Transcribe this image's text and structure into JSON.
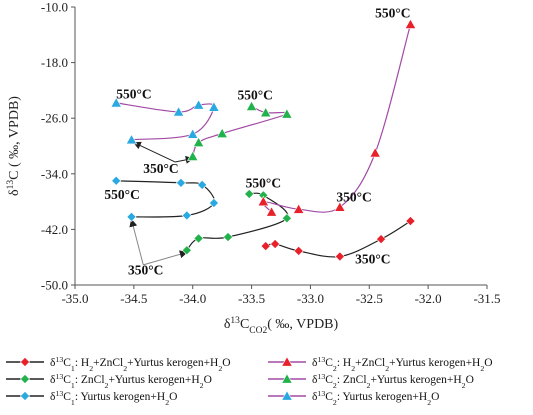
{
  "chart_data": {
    "type": "scatter",
    "title": "",
    "xlabel_parts": [
      "δ",
      "13",
      "C",
      "CO2",
      "( ‰, VPDB)"
    ],
    "ylabel_parts": [
      "δ",
      "13",
      "C ( ‰, VPDB)"
    ],
    "xlim": [
      -35.0,
      -31.5
    ],
    "ylim": [
      -50.0,
      -10.0
    ],
    "xticks": [
      -35.0,
      -34.5,
      -34.0,
      -33.5,
      -33.0,
      -32.5,
      -32.0,
      -31.5
    ],
    "xtick_labels": [
      "-35.0",
      "-34.5",
      "-34.0",
      "-33.5",
      "-33.0",
      "-32.5",
      "-32.0",
      "-31.5"
    ],
    "yticks": [
      -10.0,
      -18.0,
      -26.0,
      -34.0,
      -42.0,
      -50.0
    ],
    "ytick_labels": [
      "-10.0",
      "-18.0",
      "-26.0",
      "-34.0",
      "-42.0",
      "-50.0"
    ],
    "legend_position": "bottom",
    "series": [
      {
        "name": "δ13C1: H2+ZnCl2+Yurtus kerogen+H2O",
        "legend_parts": [
          "δ",
          "13",
          "C",
          "1",
          ": H",
          "2",
          "+ZnCl",
          "2",
          "+Yurtus kerogen+H",
          "2",
          "O"
        ],
        "marker": "diamond",
        "color": "#e8202a",
        "line_color": "#222222",
        "points": [
          [
            -33.38,
            -44.4
          ],
          [
            -33.3,
            -44.1
          ],
          [
            -33.1,
            -45.1
          ],
          [
            -32.75,
            -45.9
          ],
          [
            -32.4,
            -43.4
          ],
          [
            -32.15,
            -40.8
          ]
        ]
      },
      {
        "name": "δ13C1: ZnCl2+Yurtus kerogen+H2O",
        "legend_parts": [
          "δ",
          "13",
          "C",
          "1",
          ": ZnCl",
          "2",
          "+Yurtus kerogen+H",
          "2",
          "O"
        ],
        "marker": "diamond",
        "color": "#22b24c",
        "line_color": "#222222",
        "points": [
          [
            -34.05,
            -45.0
          ],
          [
            -33.95,
            -43.3
          ],
          [
            -33.7,
            -43.1
          ],
          [
            -33.2,
            -40.4
          ],
          [
            -33.4,
            -37.1
          ],
          [
            -33.52,
            -36.9
          ]
        ]
      },
      {
        "name": "δ13C1: Yurtus kerogen+H2O",
        "legend_parts": [
          "δ",
          "13",
          "C",
          "1",
          ": Yurtus kerogen+H",
          "2",
          "O"
        ],
        "marker": "diamond",
        "color": "#29a9e0",
        "line_color": "#222222",
        "points": [
          [
            -34.52,
            -40.2
          ],
          [
            -34.05,
            -40.0
          ],
          [
            -33.82,
            -38.2
          ],
          [
            -33.92,
            -35.6
          ],
          [
            -34.1,
            -35.3
          ],
          [
            -34.65,
            -35.0
          ]
        ]
      },
      {
        "name": "δ13C2: H2+ZnCl2+Yurtus kerogen+H2O",
        "legend_parts": [
          "δ",
          "13",
          "C",
          "2",
          ": H",
          "2",
          "+ZnCl",
          "2",
          "+Yurtus kerogen+H",
          "2",
          "O"
        ],
        "marker": "triangle",
        "color": "#e8202a",
        "line_color": "#a24aa6",
        "points": [
          [
            -33.33,
            -39.5
          ],
          [
            -33.4,
            -38.0
          ],
          [
            -33.1,
            -39.1
          ],
          [
            -32.75,
            -38.8
          ],
          [
            -32.45,
            -31.0
          ],
          [
            -32.15,
            -12.5
          ]
        ]
      },
      {
        "name": "δ13C2: ZnCl2+Yurtus kerogen+H2O",
        "legend_parts": [
          "δ",
          "13",
          "C",
          "2",
          ": ZnCl",
          "2",
          "+Yurtus kerogen+H",
          "2",
          "O"
        ],
        "marker": "triangle",
        "color": "#22b24c",
        "line_color": "#a24aa6",
        "points": [
          [
            -34.0,
            -31.5
          ],
          [
            -33.95,
            -29.5
          ],
          [
            -33.75,
            -28.2
          ],
          [
            -33.2,
            -25.4
          ],
          [
            -33.38,
            -25.2
          ],
          [
            -33.5,
            -24.3
          ]
        ]
      },
      {
        "name": "δ13C2: Yurtus kerogen+H2O",
        "legend_parts": [
          "δ",
          "13",
          "C",
          "2",
          ": Yurtus kerogen+H",
          "2",
          "O"
        ],
        "marker": "triangle",
        "color": "#29a9e0",
        "line_color": "#a24aa6",
        "points": [
          [
            -34.52,
            -29.1
          ],
          [
            -34.0,
            -28.3
          ],
          [
            -33.82,
            -24.4
          ],
          [
            -33.95,
            -24.1
          ],
          [
            -34.12,
            -25.1
          ],
          [
            -34.65,
            -23.8
          ]
        ]
      }
    ],
    "annotations": [
      "550°C",
      "550°C",
      "550°C",
      "550°C",
      "550°C",
      "350°C",
      "350°C",
      "350°C",
      "350°C"
    ]
  }
}
